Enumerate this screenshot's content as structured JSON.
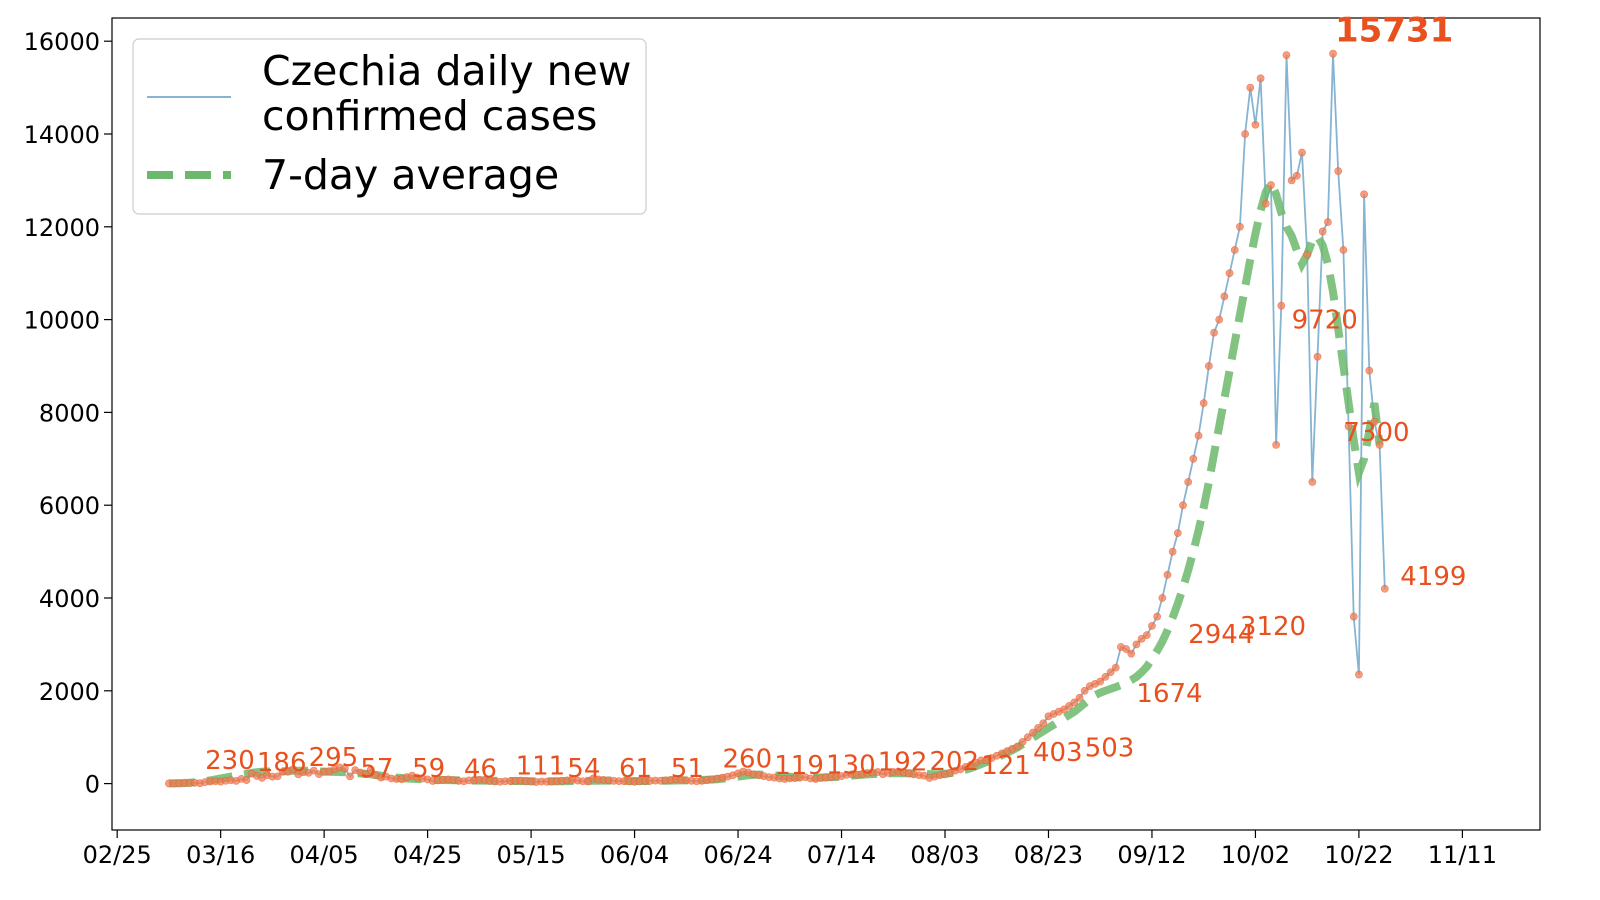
{
  "chart_data": {
    "type": "line",
    "title": "",
    "xlabel": "",
    "ylabel": "",
    "x_start": "03/07",
    "x_start_offset_days": 10,
    "x_ticks": [
      "02/25",
      "03/16",
      "04/05",
      "04/25",
      "05/15",
      "06/04",
      "06/24",
      "07/14",
      "08/03",
      "08/23",
      "09/12",
      "10/02",
      "10/22",
      "11/11"
    ],
    "x_tick_step_days": 20,
    "xlim_days": [
      -1,
      275
    ],
    "ylim": [
      -1000,
      16500
    ],
    "y_ticks": [
      0,
      2000,
      4000,
      6000,
      8000,
      10000,
      12000,
      14000,
      16000
    ],
    "grid": false,
    "legend": {
      "placement": "top-left",
      "entries": [
        {
          "line1": "Czechia daily new",
          "line2": "confirmed cases",
          "color": "#86b4d2"
        },
        {
          "line1": "7-day average",
          "line2": "",
          "color": "#6cb86c"
        }
      ]
    },
    "colors": {
      "daily": "#86b4d2",
      "average": "#6cb86c",
      "points": "#f27c54",
      "annotations": "#e8501e"
    },
    "daily_values": [
      3,
      0,
      2,
      7,
      13,
      19,
      9,
      32,
      46,
      50,
      42,
      61,
      72,
      59,
      102,
      76,
      215,
      164,
      124,
      180,
      151,
      156,
      256,
      255,
      311,
      200,
      246,
      233,
      280,
      204,
      257,
      267,
      306,
      350,
      326,
      155,
      290,
      240,
      203,
      295,
      180,
      130,
      150,
      110,
      100,
      95,
      140,
      170,
      130,
      110,
      90,
      57,
      70,
      80,
      90,
      75,
      60,
      50,
      70,
      65,
      85,
      80,
      59,
      45,
      40,
      50,
      55,
      60,
      65,
      50,
      45,
      35,
      46,
      40,
      45,
      50,
      60,
      70,
      80,
      65,
      50,
      45,
      111,
      90,
      80,
      70,
      60,
      54,
      50,
      45,
      40,
      50,
      55,
      60,
      65,
      61,
      70,
      80,
      90,
      85,
      70,
      60,
      51,
      60,
      75,
      90,
      110,
      130,
      150,
      180,
      220,
      260,
      240,
      200,
      180,
      160,
      140,
      130,
      110,
      100,
      110,
      119,
      130,
      140,
      110,
      100,
      120,
      130,
      140,
      150,
      160,
      190,
      200,
      192,
      210,
      230,
      240,
      250,
      202,
      230,
      250,
      260,
      240,
      220,
      200,
      180,
      170,
      121,
      150,
      180,
      200,
      230,
      280,
      310,
      360,
      403,
      450,
      500,
      503,
      550,
      600,
      650,
      700,
      750,
      800,
      900,
      1000,
      1100,
      1200,
      1300,
      1450,
      1500,
      1550,
      1600,
      1674,
      1750,
      1850,
      2000,
      2100,
      2150,
      2200,
      2300,
      2400,
      2500,
      2944,
      2900,
      2800,
      3000,
      3120,
      3200,
      3400,
      3600,
      4000,
      4500,
      5000,
      5400,
      6000,
      6500,
      7000,
      7500,
      8200,
      9000,
      9720,
      10000,
      10500,
      11000,
      11500,
      12000,
      14000,
      15000,
      14200,
      15200,
      12500,
      12900,
      7300,
      10300,
      15700,
      13000,
      13100,
      13600,
      11400,
      6500,
      9200,
      11900,
      12100,
      15731,
      13200,
      11500,
      7700,
      3600,
      2350,
      12700,
      8900,
      7800,
      7300,
      4199
    ],
    "average_values": [
      5,
      8,
      10,
      14,
      20,
      30,
      40,
      55,
      70,
      90,
      110,
      130,
      150,
      170,
      190,
      210,
      230,
      245,
      255,
      260,
      262,
      264,
      266,
      270,
      275,
      278,
      280,
      275,
      270,
      262,
      258,
      255,
      252,
      250,
      245,
      240,
      230,
      220,
      210,
      200,
      185,
      170,
      155,
      140,
      130,
      120,
      110,
      105,
      100,
      95,
      90,
      85,
      80,
      78,
      76,
      74,
      72,
      70,
      68,
      66,
      65,
      64,
      62,
      60,
      58,
      57,
      56,
      55,
      54,
      53,
      52,
      51,
      50,
      50,
      50,
      50,
      52,
      54,
      56,
      58,
      58,
      58,
      60,
      62,
      64,
      65,
      64,
      62,
      60,
      58,
      56,
      55,
      55,
      56,
      58,
      60,
      62,
      64,
      66,
      68,
      70,
      72,
      74,
      78,
      82,
      88,
      95,
      105,
      118,
      132,
      148,
      165,
      180,
      190,
      195,
      192,
      185,
      175,
      165,
      155,
      148,
      140,
      135,
      132,
      130,
      130,
      132,
      136,
      140,
      145,
      150,
      160,
      170,
      180,
      190,
      198,
      205,
      212,
      216,
      220,
      222,
      224,
      224,
      222,
      218,
      214,
      210,
      205,
      202,
      205,
      212,
      225,
      245,
      270,
      300,
      335,
      375,
      420,
      465,
      510,
      560,
      610,
      665,
      720,
      780,
      850,
      920,
      990,
      1060,
      1130,
      1200,
      1270,
      1340,
      1410,
      1480,
      1550,
      1640,
      1730,
      1820,
      1900,
      1960,
      2000,
      2040,
      2080,
      2120,
      2170,
      2230,
      2300,
      2400,
      2520,
      2680,
      2860,
      3060,
      3300,
      3580,
      3880,
      4220,
      4600,
      5000,
      5450,
      5950,
      6500,
      7100,
      7700,
      8300,
      8900,
      9500,
      10100,
      10700,
      11300,
      11850,
      12350,
      12750,
      12950,
      12700,
      12300,
      12000,
      11800,
      11500,
      11200,
      11400,
      11700,
      11800,
      11600,
      11200,
      10600,
      9800,
      9000,
      8200,
      7400,
      6700,
      7000,
      7600,
      8200,
      7300
    ],
    "annotations": [
      {
        "x": 17,
        "y": 230,
        "label": "230"
      },
      {
        "x": 27,
        "y": 186,
        "label": "186"
      },
      {
        "x": 37,
        "y": 295,
        "label": "295"
      },
      {
        "x": 47,
        "y": 57,
        "label": "57"
      },
      {
        "x": 57,
        "y": 59,
        "label": "59"
      },
      {
        "x": 67,
        "y": 46,
        "label": "46"
      },
      {
        "x": 77,
        "y": 111,
        "label": "111"
      },
      {
        "x": 87,
        "y": 54,
        "label": "54"
      },
      {
        "x": 97,
        "y": 61,
        "label": "61"
      },
      {
        "x": 107,
        "y": 51,
        "label": "51"
      },
      {
        "x": 117,
        "y": 260,
        "label": "260"
      },
      {
        "x": 127,
        "y": 119,
        "label": "119"
      },
      {
        "x": 137,
        "y": 130,
        "label": "130"
      },
      {
        "x": 147,
        "y": 192,
        "label": "192"
      },
      {
        "x": 157,
        "y": 202,
        "label": "202"
      },
      {
        "x": 167,
        "y": 121,
        "label": "121"
      },
      {
        "x": 177,
        "y": 403,
        "label": "403"
      },
      {
        "x": 187,
        "y": 503,
        "label": "503"
      },
      {
        "x": 197,
        "y": 1674,
        "label": "1674"
      },
      {
        "x": 207,
        "y": 2944,
        "label": "2944"
      },
      {
        "x": 217,
        "y": 3120,
        "label": "3120"
      },
      {
        "x": 227,
        "y": 9720,
        "label": "9720"
      },
      {
        "x": 237,
        "y": 7300,
        "label": "7300"
      },
      {
        "x": 248,
        "y": 4199,
        "label": "4199"
      }
    ],
    "peak": {
      "x": 247,
      "y": 15731,
      "label": "15731"
    }
  }
}
